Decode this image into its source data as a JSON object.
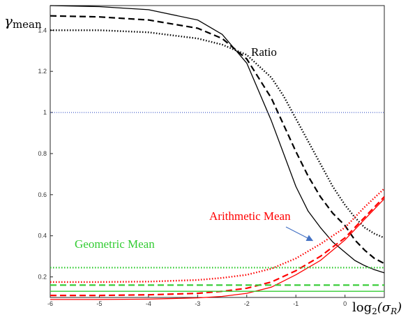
{
  "chart_data": {
    "type": "line",
    "title": "",
    "xlabel": "log₂(σ_R)",
    "ylabel": "γmean",
    "xlim": [
      -6,
      0.8
    ],
    "ylim": [
      0.1,
      1.52
    ],
    "xticks": [
      -6,
      -5,
      -4,
      -3,
      -2,
      -1,
      0
    ],
    "xtick_labels": [
      "-6",
      "-5",
      "-4",
      "-3",
      "-2",
      "-1",
      "0"
    ],
    "yticks": [
      0.2,
      0.4,
      0.6,
      0.8,
      1.0,
      1.2,
      1.4
    ],
    "ytick_labels": [
      "0.2",
      "0.4",
      "0.6",
      "0.8",
      "1",
      "1.2",
      "1.4"
    ],
    "grid": false,
    "legend": "none",
    "series": [
      {
        "group": "Ratio",
        "style": "solid",
        "color": "#000000",
        "x": [
          -6,
          -5,
          -4,
          -3,
          -2.5,
          -2,
          -1.5,
          -1.25,
          -1,
          -0.75,
          -0.5,
          -0.25,
          0,
          0.2,
          0.4,
          0.6,
          0.8
        ],
        "y": [
          1.52,
          1.515,
          1.5,
          1.45,
          1.38,
          1.24,
          0.96,
          0.8,
          0.64,
          0.52,
          0.44,
          0.37,
          0.32,
          0.28,
          0.255,
          0.235,
          0.22
        ]
      },
      {
        "group": "Ratio",
        "style": "dashed",
        "color": "#000000",
        "x": [
          -6,
          -5,
          -4,
          -3,
          -2.5,
          -2,
          -1.5,
          -1.25,
          -1,
          -0.75,
          -0.5,
          -0.25,
          0,
          0.2,
          0.4,
          0.6,
          0.8
        ],
        "y": [
          1.47,
          1.465,
          1.45,
          1.41,
          1.36,
          1.26,
          1.07,
          0.94,
          0.81,
          0.69,
          0.59,
          0.51,
          0.45,
          0.38,
          0.33,
          0.29,
          0.265
        ]
      },
      {
        "group": "Ratio",
        "style": "dotted",
        "color": "#000000",
        "x": [
          -6,
          -5,
          -4,
          -3,
          -2.5,
          -2,
          -1.5,
          -1.25,
          -1,
          -0.75,
          -0.5,
          -0.25,
          0,
          0.2,
          0.4,
          0.6,
          0.8
        ],
        "y": [
          1.4,
          1.4,
          1.39,
          1.36,
          1.33,
          1.28,
          1.17,
          1.08,
          0.97,
          0.86,
          0.75,
          0.64,
          0.55,
          0.49,
          0.44,
          0.41,
          0.39
        ]
      },
      {
        "group": "Arithmetic Mean",
        "style": "solid",
        "color": "#ff0000",
        "x": [
          -6,
          -5,
          -4,
          -3,
          -2.5,
          -2,
          -1.5,
          -1,
          -0.5,
          0,
          0.4,
          0.8
        ],
        "y": [
          0.09,
          0.09,
          0.092,
          0.098,
          0.105,
          0.12,
          0.15,
          0.21,
          0.28,
          0.38,
          0.48,
          0.58
        ]
      },
      {
        "group": "Arithmetic Mean",
        "style": "dashed",
        "color": "#ff0000",
        "x": [
          -6,
          -5,
          -4,
          -3,
          -2.5,
          -2,
          -1.5,
          -1,
          -0.5,
          0,
          0.4,
          0.8
        ],
        "y": [
          0.11,
          0.11,
          0.113,
          0.12,
          0.13,
          0.145,
          0.175,
          0.23,
          0.3,
          0.39,
          0.49,
          0.59
        ]
      },
      {
        "group": "Arithmetic Mean",
        "style": "dotted",
        "color": "#ff0000",
        "x": [
          -6,
          -5,
          -4,
          -3,
          -2.5,
          -2,
          -1.5,
          -1,
          -0.5,
          0,
          0.4,
          0.8
        ],
        "y": [
          0.175,
          0.175,
          0.177,
          0.185,
          0.195,
          0.21,
          0.24,
          0.29,
          0.36,
          0.44,
          0.54,
          0.63
        ]
      },
      {
        "group": "Geometric Mean",
        "style": "solid",
        "color": "#33cc33",
        "x": [
          -6,
          0.8
        ],
        "y": [
          0.13,
          0.13
        ]
      },
      {
        "group": "Geometric Mean",
        "style": "dashed",
        "color": "#33cc33",
        "x": [
          -6,
          0.8
        ],
        "y": [
          0.16,
          0.16
        ]
      },
      {
        "group": "Geometric Mean",
        "style": "dotted",
        "color": "#33cc33",
        "x": [
          -6,
          0.8
        ],
        "y": [
          0.245,
          0.245
        ]
      },
      {
        "group": "reference",
        "style": "dotted-thin",
        "color": "#1f3fbf",
        "x": [
          -6,
          0.8
        ],
        "y": [
          1.0,
          1.0
        ]
      }
    ],
    "annotations": [
      {
        "text": "Ratio",
        "color": "#000000"
      },
      {
        "text": "Arithmetic Mean",
        "color": "#ff0000"
      },
      {
        "text": "Geometric Mean",
        "color": "#33cc33"
      }
    ],
    "arrow_color": "#4472c4",
    "ylabel_parts": {
      "main": "γ",
      "sub": "mean"
    },
    "xlabel_parts": {
      "pre": "log",
      "sub2": "2",
      "open": "(σ",
      "subR": "R",
      "close": ")"
    }
  }
}
